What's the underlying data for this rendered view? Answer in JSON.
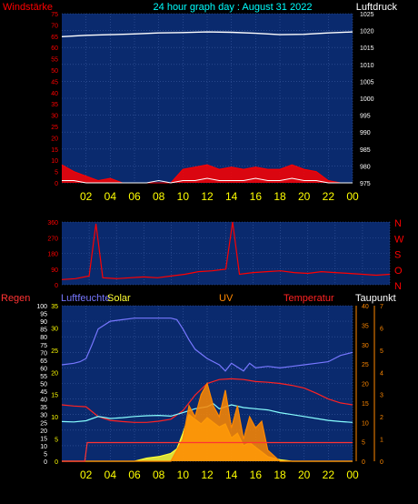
{
  "header": {
    "left_label": "Windstärke",
    "center_title": "24 hour graph day : August 31 2022",
    "right_label": "Luftdruck"
  },
  "colors": {
    "background": "#000000",
    "plot_bg": "#0a2a6e",
    "grid": "#3a5aa0",
    "wind": "#ff0000",
    "gust": "#ffffff",
    "pressure": "#ffffff",
    "direction": "#ff0000",
    "humidity": "#7777ff",
    "solar": "#ffff33",
    "uv": "#ff8800",
    "temperature": "#ff2222",
    "dewpoint": "#88ffff",
    "rain": "#ff3333",
    "axis_red": "#ff0000",
    "axis_yellow": "#ffff00",
    "axis_orange": "#ff8800",
    "axis_white": "#ffffff"
  },
  "chart_data": [
    {
      "type": "line",
      "panel": "wind-pressure",
      "x_ticks": [
        "02",
        "04",
        "06",
        "08",
        "10",
        "12",
        "14",
        "16",
        "18",
        "20",
        "22",
        "00"
      ],
      "left_axis": {
        "label": "Windstärke",
        "ticks": [
          0,
          5,
          10,
          15,
          20,
          25,
          30,
          35,
          40,
          45,
          50,
          55,
          60,
          65,
          70,
          75
        ],
        "ylim": [
          0,
          75
        ]
      },
      "right_axis": {
        "label": "Luftdruck",
        "ticks": [
          975,
          980,
          985,
          990,
          995,
          1000,
          1005,
          1010,
          1015,
          1020,
          1025
        ],
        "ylim": [
          975,
          1025
        ]
      },
      "series": [
        {
          "name": "Luftdruck",
          "axis": "right",
          "x": [
            0,
            2,
            4,
            6,
            8,
            10,
            12,
            14,
            16,
            18,
            20,
            22,
            24
          ],
          "values": [
            1018.2,
            1018.6,
            1018.8,
            1019.0,
            1019.3,
            1019.4,
            1019.6,
            1019.5,
            1019.2,
            1018.8,
            1018.9,
            1019.3,
            1019.6
          ]
        },
        {
          "axis": "left",
          "x": [
            0,
            1,
            2,
            3,
            4,
            5,
            6,
            7,
            8,
            9,
            10,
            11,
            12,
            13,
            14,
            15,
            16,
            17,
            18,
            19,
            20,
            21,
            22,
            23,
            24
          ],
          "values": [
            8,
            5,
            3,
            1,
            2,
            0,
            0,
            0,
            0,
            0,
            6,
            7,
            8,
            6,
            7,
            6,
            7,
            6,
            6,
            8,
            6,
            5,
            1,
            0,
            0
          ]
        },
        {
          "axis": "left",
          "x": [
            0,
            1,
            2,
            3,
            4,
            5,
            6,
            7,
            8,
            9,
            10,
            11,
            12,
            13,
            14,
            15,
            16,
            17,
            18,
            19,
            20,
            21,
            22,
            23,
            24
          ],
          "values": [
            1,
            1,
            0,
            0,
            0,
            0,
            0,
            0,
            1,
            0,
            1,
            1,
            2,
            1,
            1,
            1,
            2,
            1,
            1,
            2,
            1,
            1,
            0,
            0,
            0
          ]
        }
      ]
    },
    {
      "type": "line",
      "panel": "wind-direction",
      "x_ticks": [
        "02",
        "04",
        "06",
        "08",
        "10",
        "12",
        "14",
        "16",
        "18",
        "20",
        "22",
        "00"
      ],
      "left_axis": {
        "ticks": [
          0,
          90,
          180,
          270,
          360
        ],
        "ylim": [
          0,
          360
        ]
      },
      "right_axis": {
        "ticks": [
          "N",
          "W",
          "S",
          "O",
          "N"
        ]
      },
      "series": [
        {
          "axis": "left",
          "x": [
            0,
            1,
            2,
            2.5,
            3,
            4,
            5,
            6,
            7,
            8,
            9,
            10,
            11,
            12,
            12.5,
            13,
            14,
            15,
            16,
            17,
            18,
            19,
            20,
            21,
            22,
            23,
            24
          ],
          "values": [
            30,
            35,
            50,
            350,
            40,
            35,
            40,
            45,
            40,
            50,
            60,
            75,
            80,
            90,
            360,
            60,
            70,
            75,
            80,
            70,
            65,
            75,
            70,
            65,
            60,
            55,
            60
          ]
        }
      ]
    },
    {
      "type": "line",
      "panel": "humidity-solar-uv-temperature-dewpoint",
      "x_ticks": [
        "02",
        "04",
        "06",
        "08",
        "10",
        "12",
        "14",
        "16",
        "18",
        "20",
        "22",
        "00"
      ],
      "legend": [
        "Regen",
        "Luftfeuchte",
        "Solar",
        "UV",
        "Temperatur",
        "Taupunkt"
      ],
      "axes": {
        "Regen": {
          "ticks": [
            0,
            5,
            10,
            15,
            20,
            25,
            30,
            35,
            40,
            45,
            50,
            55,
            60,
            65,
            70,
            75,
            80,
            85,
            90,
            95,
            100
          ]
        },
        "Luftfeuchte": {
          "ticks": [
            0,
            5,
            10,
            15,
            20,
            25,
            30,
            35
          ]
        },
        "Temperatur": {
          "ticks": [
            0,
            5,
            10,
            15,
            20,
            25,
            30,
            35,
            40
          ]
        },
        "Taupunkt": {
          "ticks": [
            0,
            1,
            2,
            3,
            4,
            5,
            6,
            7
          ]
        }
      },
      "series": [
        {
          "name": "Luftfeuchte",
          "x": [
            0,
            1,
            1.5,
            2,
            2.5,
            3,
            4,
            5,
            6,
            7,
            8,
            9,
            9.5,
            10,
            10.5,
            11,
            12,
            13,
            13.5,
            14,
            15,
            15.5,
            16,
            17,
            18,
            19,
            20,
            21,
            22,
            23,
            24
          ],
          "values": [
            62,
            63,
            64,
            66,
            75,
            85,
            90,
            91,
            92,
            92,
            92,
            92,
            91,
            85,
            78,
            72,
            66,
            62,
            58,
            63,
            58,
            63,
            60,
            61,
            60,
            61,
            62,
            63,
            64,
            68,
            70
          ]
        },
        {
          "name": "Temperatur",
          "x": [
            0,
            1,
            2,
            3,
            4,
            5,
            6,
            7,
            8,
            9,
            10,
            11,
            12,
            13,
            14,
            15,
            16,
            17,
            18,
            19,
            20,
            21,
            22,
            23,
            24
          ],
          "values": [
            14.5,
            14.2,
            14.0,
            11.5,
            10.5,
            10.2,
            10.0,
            10.0,
            10.3,
            10.8,
            13.0,
            17.0,
            20.0,
            21.0,
            21.2,
            21.0,
            20.5,
            20.3,
            20.0,
            19.5,
            18.8,
            17.5,
            16.0,
            15.0,
            14.5
          ]
        },
        {
          "name": "Taupunkt",
          "x": [
            0,
            1,
            2,
            3,
            4,
            5,
            6,
            7,
            8,
            9,
            10,
            11,
            12,
            12.5,
            13,
            14,
            15,
            16,
            17,
            18,
            19,
            20,
            21,
            22,
            23,
            24
          ],
          "values": [
            10.2,
            10.1,
            10.4,
            11.5,
            11.0,
            11.2,
            11.5,
            11.7,
            11.8,
            11.6,
            12.5,
            13.5,
            14.0,
            14.8,
            13.5,
            14.5,
            13.8,
            13.5,
            13.2,
            12.5,
            12.0,
            11.5,
            11.0,
            10.5,
            10.2,
            10.0
          ]
        },
        {
          "name": "Solar",
          "x": [
            0,
            6,
            7,
            8,
            9,
            9.5,
            10,
            10.5,
            11,
            11.5,
            12,
            12.5,
            13,
            13.5,
            14,
            14.5,
            15,
            15.5,
            16,
            16.5,
            17,
            18,
            19,
            24
          ],
          "values": [
            0,
            0,
            2,
            3,
            5,
            8,
            18,
            30,
            27,
            24,
            28,
            25,
            22,
            24,
            15,
            18,
            10,
            12,
            9,
            6,
            3,
            1,
            0,
            0
          ]
        },
        {
          "name": "UV",
          "x": [
            0,
            9,
            10,
            10.5,
            11,
            11.5,
            12,
            12.5,
            13,
            13.5,
            14,
            14.5,
            15,
            15.5,
            16,
            16.5,
            17,
            18,
            24
          ],
          "values": [
            0,
            0,
            1,
            2.5,
            2,
            3,
            3.5,
            2.5,
            2,
            3.2,
            1.5,
            2.5,
            1.0,
            2.0,
            1.5,
            1.8,
            0.5,
            0,
            0
          ]
        },
        {
          "name": "Regen",
          "x": [
            0,
            1.9,
            2.1,
            24
          ],
          "values": [
            0,
            0,
            12,
            12
          ]
        }
      ]
    }
  ]
}
